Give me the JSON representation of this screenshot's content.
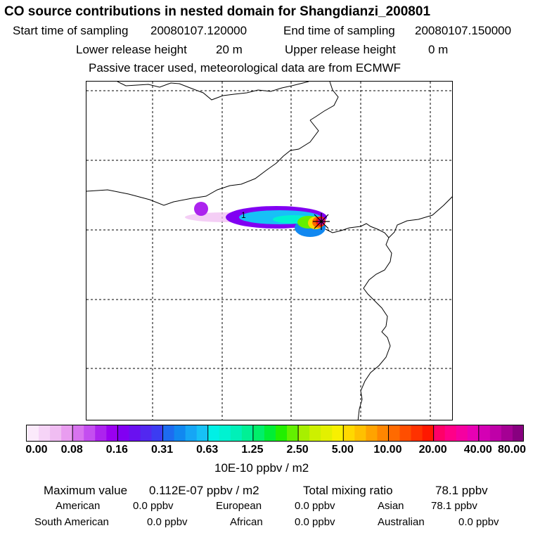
{
  "title": "CO  source contributions in nested domain for Shangdianzi_200801",
  "header": {
    "start_label": "Start time of sampling",
    "start_value": "20080107.120000",
    "end_label": "End time of sampling",
    "end_value": "20080107.150000",
    "lower_label": "Lower release height",
    "lower_value": "20 m",
    "upper_label": "Upper release height",
    "upper_value": "0 m",
    "info_line": "Passive tracer used, meteorological data are from ECMWF"
  },
  "chart_data": {
    "type": "heatmap",
    "description_kind": "map of source contributions",
    "colorbar": {
      "ticks": [
        "0.00",
        "0.08",
        "0.16",
        "0.31",
        "0.63",
        "1.25",
        "2.50",
        "5.00",
        "10.00",
        "20.00",
        "40.00",
        "80.00"
      ],
      "unit_label": "10E-10 ppbv / m2",
      "colors": [
        "#fbeafb",
        "#f6d4f7",
        "#f0bdf2",
        "#e99df0",
        "#d873ef",
        "#c44ef0",
        "#ac23ee",
        "#9a00f0",
        "#8100f2",
        "#6a10f0",
        "#5228f0",
        "#3c3cf2",
        "#1d6cf0",
        "#1188f0",
        "#16a6f5",
        "#17c1f6",
        "#00f0e6",
        "#00f2d1",
        "#00f0b8",
        "#00f095",
        "#00ef6a",
        "#00ee35",
        "#22ef00",
        "#63f000",
        "#a7ef00",
        "#cdf000",
        "#e3f000",
        "#f8f000",
        "#ffd800",
        "#ffc000",
        "#ffa300",
        "#ff8600",
        "#ff6a00",
        "#ff4e00",
        "#ff3200",
        "#ff1800",
        "#ff0068",
        "#ff0088",
        "#f500a0",
        "#e800b4",
        "#d400b4",
        "#bf00a8",
        "#a50094",
        "#880080"
      ]
    },
    "marker_count": "1"
  },
  "stats": {
    "max_label": "Maximum value",
    "max_value": "0.112E-07 ppbv / m2",
    "total_label": "Total mixing ratio",
    "total_value": "78.1 ppbv",
    "regions": [
      {
        "name": "American",
        "value": "0.0 ppbv"
      },
      {
        "name": "European",
        "value": "0.0 ppbv"
      },
      {
        "name": "Asian",
        "value": "78.1 ppbv"
      },
      {
        "name": "South American",
        "value": "0.0 ppbv"
      },
      {
        "name": "African",
        "value": "0.0 ppbv"
      },
      {
        "name": "Australian",
        "value": "0.0 ppbv"
      }
    ]
  }
}
